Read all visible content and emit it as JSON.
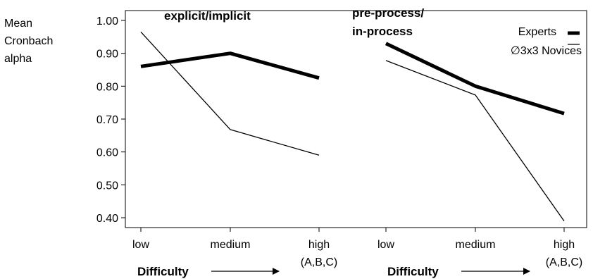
{
  "chart_data": {
    "type": "line",
    "ylabel": [
      "Mean",
      "Cronbach",
      "alpha"
    ],
    "ylim": [
      0.37,
      1.03
    ],
    "yticks": [
      1.0,
      0.9,
      0.8,
      0.7,
      0.6,
      0.5,
      0.4
    ],
    "ytick_labels": [
      "1.00",
      "0.90",
      "0.80",
      "0.70",
      "0.60",
      "0.50",
      "0.40"
    ],
    "grid": false,
    "legend": {
      "placement": "top-right",
      "entries": [
        {
          "name": "Experts",
          "style": "thick"
        },
        {
          "name": "∅3x3 Novices",
          "style": "thin"
        }
      ]
    },
    "panels": [
      {
        "title": "explicit/implicit",
        "categories": [
          "low",
          "medium",
          "high"
        ],
        "category_sublabels": [
          "",
          "",
          "(A,B,C)"
        ],
        "xlabel": "Difficulty",
        "series": [
          {
            "name": "Experts",
            "values": [
              0.86,
              0.9,
              0.825
            ]
          },
          {
            "name": "∅3x3 Novices",
            "values": [
              0.965,
              0.668,
              0.59
            ]
          }
        ]
      },
      {
        "title": [
          "pre-process/",
          "in-process"
        ],
        "categories": [
          "low",
          "medium",
          "high"
        ],
        "category_sublabels": [
          "",
          "",
          "(A,B,C)"
        ],
        "xlabel": "Difficulty",
        "series": [
          {
            "name": "Experts",
            "values": [
              0.93,
              0.8,
              0.717
            ]
          },
          {
            "name": "∅3x3 Novices",
            "values": [
              0.878,
              0.773,
              0.39
            ]
          }
        ]
      }
    ]
  }
}
